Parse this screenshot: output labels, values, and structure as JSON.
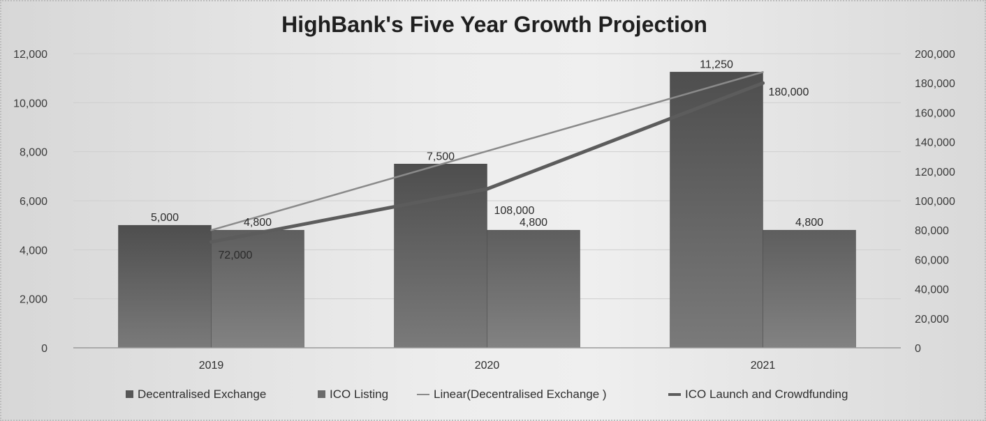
{
  "chart_data": {
    "type": "bar",
    "title": "HighBank's Five Year Growth Projection",
    "categories": [
      "2019",
      "2020",
      "2021"
    ],
    "y_left": {
      "ticks": [
        "0",
        "2,000",
        "4,000",
        "6,000",
        "8,000",
        "10,000",
        "12,000"
      ],
      "range": [
        0,
        12000
      ]
    },
    "y_right": {
      "ticks": [
        "0",
        "20,000",
        "40,000",
        "60,000",
        "80,000",
        "100,000",
        "120,000",
        "140,000",
        "160,000",
        "180,000",
        "200,000"
      ],
      "range": [
        0,
        200000
      ]
    },
    "series": [
      {
        "name": "Decentralised Exchange",
        "kind": "bar",
        "axis": "left",
        "values": [
          5000,
          7500,
          11250
        ],
        "labels": [
          "5,000",
          "7,500",
          "11,250"
        ],
        "color": "#565656"
      },
      {
        "name": "ICO Listing",
        "kind": "bar",
        "axis": "left",
        "values": [
          4800,
          4800,
          4800
        ],
        "labels": [
          "4,800",
          "4,800",
          "4,800"
        ],
        "color": "#6a6a6a"
      },
      {
        "name": "Linear(Decentralised Exchange )",
        "kind": "trendline",
        "axis": "left",
        "values": [
          4800,
          8025,
          11250
        ],
        "color": "#8a8a8a"
      },
      {
        "name": "ICO Launch and Crowdfunding",
        "kind": "line",
        "axis": "right",
        "values": [
          72000,
          108000,
          180000
        ],
        "labels": [
          "72,000",
          "108,000",
          "180,000"
        ],
        "color": "#5c5c5c"
      }
    ],
    "grid": true,
    "legend_position": "bottom"
  }
}
